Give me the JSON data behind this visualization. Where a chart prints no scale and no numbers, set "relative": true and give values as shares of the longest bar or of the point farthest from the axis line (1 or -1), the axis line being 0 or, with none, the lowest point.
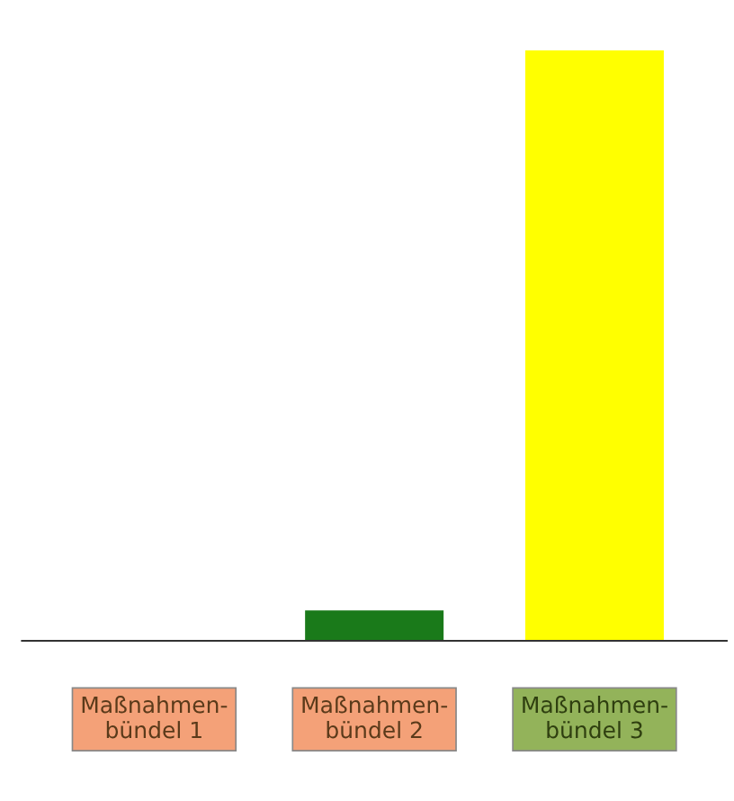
{
  "chart_data": {
    "type": "bar",
    "relative": true,
    "categories": [
      "Maßnahmen-\nbündel 1",
      "Maßnahmen-\nbündel 2",
      "Maßnahmen-\nbündel 3"
    ],
    "values": [
      0,
      0.05,
      1
    ],
    "colors": [
      "#1a7a1a",
      "#1a7a1a",
      "#ffff00"
    ]
  }
}
